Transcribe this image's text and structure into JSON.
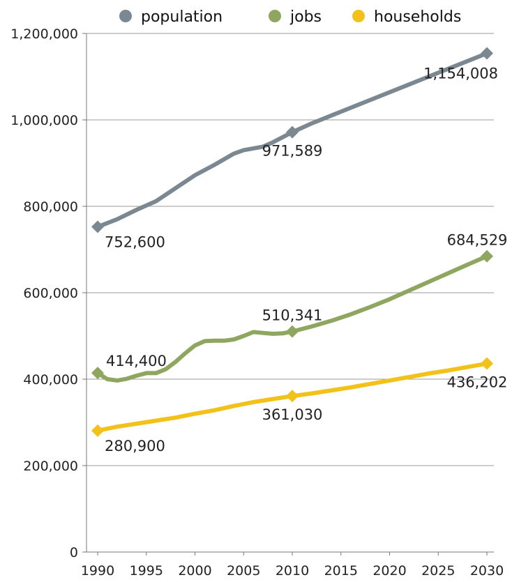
{
  "chart_data": {
    "type": "line",
    "title": "",
    "xlabel": "",
    "ylabel": "",
    "x_ticks": [
      1990,
      1995,
      2000,
      2005,
      2010,
      2015,
      2020,
      2025,
      2030
    ],
    "y_ticks": [
      "0",
      "200,000",
      "400,000",
      "600,000",
      "800,000",
      "1,000,000",
      "1,200,000"
    ],
    "y_tick_values": [
      0,
      200000,
      400000,
      600000,
      800000,
      1000000,
      1200000
    ],
    "xlim": [
      1990,
      2030
    ],
    "ylim": [
      0,
      1200000
    ],
    "grid": "horizontal",
    "legend_position": "top",
    "series": [
      {
        "name": "population",
        "color": "#7b8891",
        "points": [
          [
            1990,
            752600
          ],
          [
            1992,
            770000
          ],
          [
            1994,
            792000
          ],
          [
            1996,
            812000
          ],
          [
            1998,
            842000
          ],
          [
            2000,
            872000
          ],
          [
            2002,
            896000
          ],
          [
            2004,
            922000
          ],
          [
            2005,
            930000
          ],
          [
            2007,
            938000
          ],
          [
            2008,
            948000
          ],
          [
            2010,
            971589
          ],
          [
            2012,
            992000
          ],
          [
            2014,
            1010000
          ],
          [
            2016,
            1028000
          ],
          [
            2018,
            1046000
          ],
          [
            2020,
            1064000
          ],
          [
            2022,
            1082000
          ],
          [
            2024,
            1100000
          ],
          [
            2026,
            1118000
          ],
          [
            2028,
            1136000
          ],
          [
            2030,
            1154008
          ]
        ],
        "labels": [
          {
            "x": 1990,
            "y": 752600,
            "text": "752,600",
            "anchor": "right-below"
          },
          {
            "x": 2010,
            "y": 971589,
            "text": "971,589",
            "anchor": "below"
          },
          {
            "x": 2030,
            "y": 1154008,
            "text": "1,154,008",
            "anchor": "left-below"
          }
        ]
      },
      {
        "name": "jobs",
        "color": "#8ea660",
        "points": [
          [
            1990,
            414400
          ],
          [
            1991,
            400000
          ],
          [
            1992,
            397000
          ],
          [
            1993,
            401000
          ],
          [
            1994,
            408000
          ],
          [
            1995,
            414000
          ],
          [
            1996,
            414000
          ],
          [
            1997,
            423000
          ],
          [
            1998,
            440000
          ],
          [
            1999,
            460000
          ],
          [
            2000,
            478000
          ],
          [
            2001,
            488000
          ],
          [
            2002,
            489000
          ],
          [
            2003,
            489000
          ],
          [
            2004,
            492000
          ],
          [
            2005,
            500000
          ],
          [
            2006,
            509000
          ],
          [
            2007,
            507000
          ],
          [
            2008,
            505000
          ],
          [
            2009,
            506000
          ],
          [
            2010,
            510341
          ],
          [
            2012,
            522000
          ],
          [
            2014,
            535000
          ],
          [
            2016,
            550000
          ],
          [
            2018,
            567000
          ],
          [
            2020,
            585000
          ],
          [
            2022,
            605000
          ],
          [
            2024,
            625000
          ],
          [
            2026,
            645000
          ],
          [
            2028,
            665000
          ],
          [
            2030,
            684529
          ]
        ],
        "labels": [
          {
            "x": 1990,
            "y": 414400,
            "text": "414,400",
            "anchor": "right-above"
          },
          {
            "x": 2010,
            "y": 510341,
            "text": "510,341",
            "anchor": "above"
          },
          {
            "x": 2030,
            "y": 684529,
            "text": "684,529",
            "anchor": "above"
          }
        ]
      },
      {
        "name": "households",
        "color": "#f2c21a",
        "points": [
          [
            1990,
            280900
          ],
          [
            1992,
            290000
          ],
          [
            1994,
            297000
          ],
          [
            1996,
            304000
          ],
          [
            1998,
            311000
          ],
          [
            2000,
            320000
          ],
          [
            2002,
            328000
          ],
          [
            2004,
            338000
          ],
          [
            2006,
            347000
          ],
          [
            2008,
            354000
          ],
          [
            2010,
            361030
          ],
          [
            2012,
            367000
          ],
          [
            2014,
            374000
          ],
          [
            2016,
            381000
          ],
          [
            2018,
            389000
          ],
          [
            2020,
            397000
          ],
          [
            2022,
            405000
          ],
          [
            2024,
            413000
          ],
          [
            2026,
            420000
          ],
          [
            2028,
            428000
          ],
          [
            2030,
            436202
          ]
        ],
        "labels": [
          {
            "x": 1990,
            "y": 280900,
            "text": "280,900",
            "anchor": "right-below"
          },
          {
            "x": 2010,
            "y": 361030,
            "text": "361,030",
            "anchor": "below"
          },
          {
            "x": 2030,
            "y": 436202,
            "text": "436,202",
            "anchor": "below"
          }
        ]
      }
    ]
  }
}
